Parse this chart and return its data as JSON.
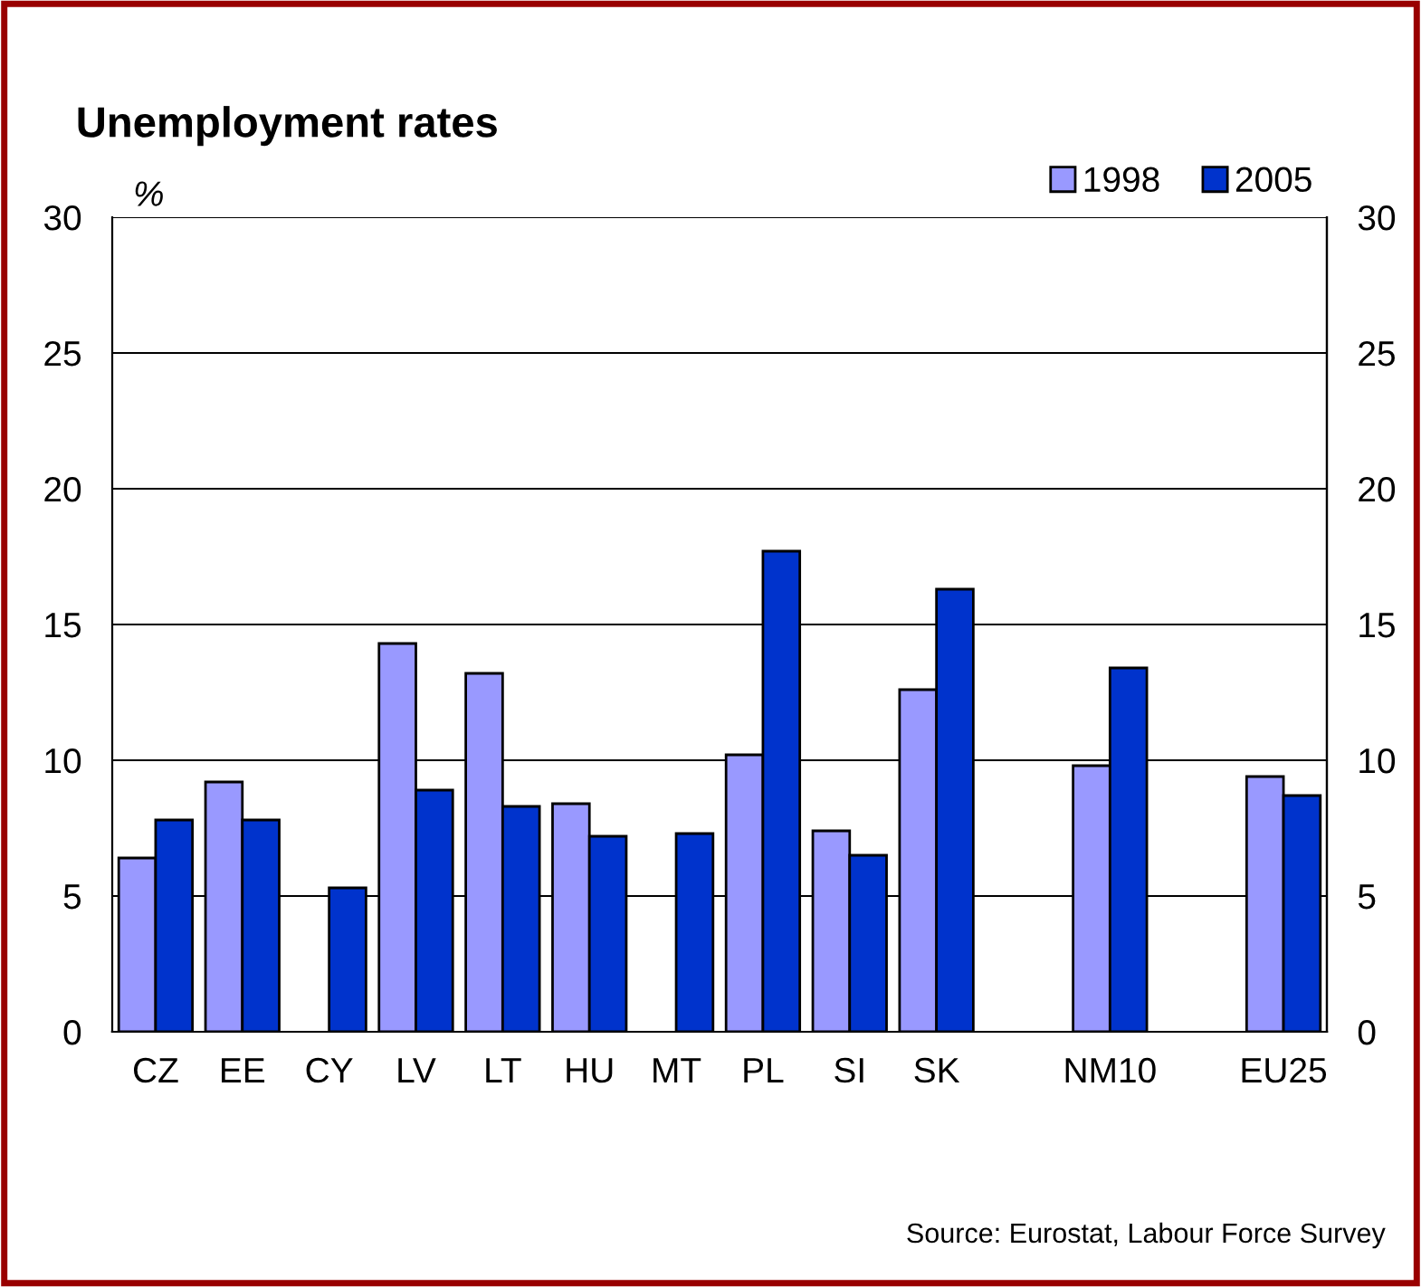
{
  "chart_data": {
    "type": "bar",
    "title": "Unemployment rates",
    "ylabel": "%",
    "categories": [
      "CZ",
      "EE",
      "CY",
      "LV",
      "LT",
      "HU",
      "MT",
      "PL",
      "SI",
      "SK",
      null,
      "NM10",
      null,
      "EU25"
    ],
    "series": [
      {
        "name": "1998",
        "color": "#9999ff",
        "values": [
          6.4,
          9.2,
          null,
          14.3,
          13.2,
          8.4,
          null,
          10.2,
          7.4,
          12.6,
          null,
          9.8,
          null,
          9.4
        ]
      },
      {
        "name": "2005",
        "color": "#0033cc",
        "values": [
          7.8,
          7.8,
          5.3,
          8.9,
          8.3,
          7.2,
          7.3,
          17.7,
          6.5,
          16.3,
          null,
          13.4,
          null,
          8.7
        ]
      }
    ],
    "ylim": [
      0,
      30
    ],
    "yticks": [
      0,
      5,
      10,
      15,
      20,
      25,
      30
    ],
    "y2lim": [
      0,
      30
    ],
    "y2ticks": [
      0,
      5,
      10,
      15,
      20,
      25,
      30
    ],
    "grid": "y",
    "legend": "top right",
    "annotations": [
      "Source: Eurostat, Labour Force Survey"
    ]
  }
}
